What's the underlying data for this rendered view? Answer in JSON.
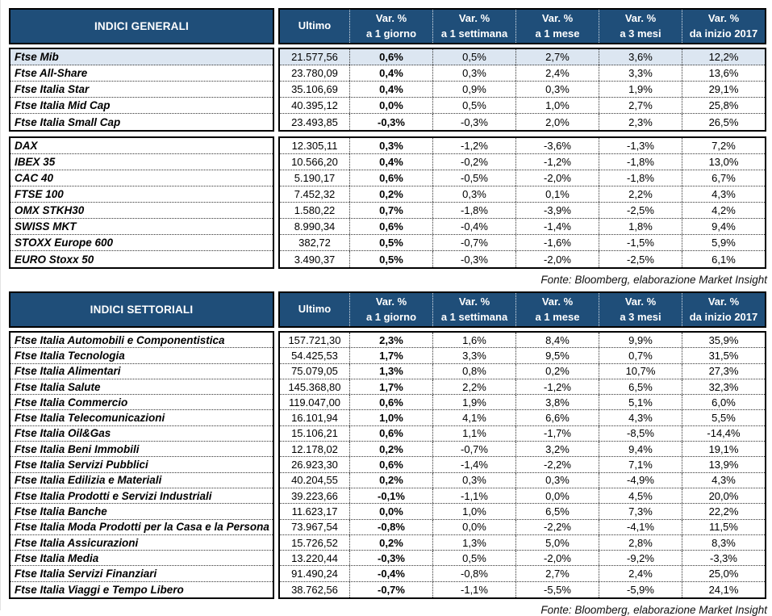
{
  "columns": {
    "ultimo": "Ultimo",
    "var_headers": [
      {
        "line1": "Var. %",
        "line2": "a 1 giorno"
      },
      {
        "line1": "Var. %",
        "line2": "a 1 settimana"
      },
      {
        "line1": "Var. %",
        "line2": "a 1 mese"
      },
      {
        "line1": "Var. %",
        "line2": "a 3 mesi"
      },
      {
        "line1": "Var. %",
        "line2": "da inizio 2017"
      }
    ]
  },
  "colors": {
    "header_bg": "#1F4E79",
    "header_text": "#FFFFFF",
    "highlight_row_bg": "#DCE6F1",
    "border": "#000000"
  },
  "tables": [
    {
      "title": "INDICI GENERALI",
      "source": "Fonte: Bloomberg, elaborazione Market Insight",
      "blocks": [
        {
          "rows": [
            {
              "name": "Ftse Mib",
              "ultimo": "21.577,56",
              "vars": [
                "0,6%",
                "0,5%",
                "2,7%",
                "3,6%",
                "12,2%"
              ],
              "highlight": true
            },
            {
              "name": "Ftse All-Share",
              "ultimo": "23.780,09",
              "vars": [
                "0,4%",
                "0,3%",
                "2,4%",
                "3,3%",
                "13,6%"
              ],
              "highlight": false
            },
            {
              "name": "Ftse Italia Star",
              "ultimo": "35.106,69",
              "vars": [
                "0,4%",
                "0,9%",
                "0,3%",
                "1,9%",
                "29,1%"
              ],
              "highlight": false
            },
            {
              "name": "Ftse Italia Mid Cap",
              "ultimo": "40.395,12",
              "vars": [
                "0,0%",
                "0,5%",
                "1,0%",
                "2,7%",
                "25,8%"
              ],
              "highlight": false
            },
            {
              "name": "Ftse Italia Small Cap",
              "ultimo": "23.493,85",
              "vars": [
                "-0,3%",
                "-0,3%",
                "2,0%",
                "2,3%",
                "26,5%"
              ],
              "highlight": false
            }
          ]
        },
        {
          "rows": [
            {
              "name": "DAX",
              "ultimo": "12.305,11",
              "vars": [
                "0,3%",
                "-1,2%",
                "-3,6%",
                "-1,3%",
                "7,2%"
              ],
              "highlight": false
            },
            {
              "name": "IBEX 35",
              "ultimo": "10.566,20",
              "vars": [
                "0,4%",
                "-0,2%",
                "-1,2%",
                "-1,8%",
                "13,0%"
              ],
              "highlight": false
            },
            {
              "name": "CAC 40",
              "ultimo": "5.190,17",
              "vars": [
                "0,6%",
                "-0,5%",
                "-2,0%",
                "-1,8%",
                "6,7%"
              ],
              "highlight": false
            },
            {
              "name": "FTSE 100",
              "ultimo": "7.452,32",
              "vars": [
                "0,2%",
                "0,3%",
                "0,1%",
                "2,2%",
                "4,3%"
              ],
              "highlight": false
            },
            {
              "name": "OMX STKH30",
              "ultimo": "1.580,22",
              "vars": [
                "0,7%",
                "-1,8%",
                "-3,9%",
                "-2,5%",
                "4,2%"
              ],
              "highlight": false
            },
            {
              "name": "SWISS MKT",
              "ultimo": "8.990,34",
              "vars": [
                "0,6%",
                "-0,4%",
                "-1,4%",
                "1,8%",
                "9,4%"
              ],
              "highlight": false
            },
            {
              "name": "STOXX Europe 600",
              "ultimo": "382,72",
              "vars": [
                "0,5%",
                "-0,7%",
                "-1,6%",
                "-1,5%",
                "5,9%"
              ],
              "highlight": false
            },
            {
              "name": "EURO Stoxx 50",
              "ultimo": "3.490,37",
              "vars": [
                "0,5%",
                "-0,3%",
                "-2,0%",
                "-2,5%",
                "6,1%"
              ],
              "highlight": false
            }
          ]
        }
      ]
    },
    {
      "title": "INDICI SETTORIALI",
      "source": "Fonte: Bloomberg, elaborazione Market Insight",
      "blocks": [
        {
          "rows": [
            {
              "name": "Ftse Italia Automobili e Componentistica",
              "ultimo": "157.721,30",
              "vars": [
                "2,3%",
                "1,6%",
                "8,4%",
                "9,9%",
                "35,9%"
              ],
              "highlight": false
            },
            {
              "name": "Ftse Italia Tecnologia",
              "ultimo": "54.425,53",
              "vars": [
                "1,7%",
                "3,3%",
                "9,5%",
                "0,7%",
                "31,5%"
              ],
              "highlight": false
            },
            {
              "name": "Ftse Italia Alimentari",
              "ultimo": "75.079,05",
              "vars": [
                "1,3%",
                "0,8%",
                "0,2%",
                "10,7%",
                "27,3%"
              ],
              "highlight": false
            },
            {
              "name": "Ftse Italia Salute",
              "ultimo": "145.368,80",
              "vars": [
                "1,7%",
                "2,2%",
                "-1,2%",
                "6,5%",
                "32,3%"
              ],
              "highlight": false
            },
            {
              "name": "Ftse Italia Commercio",
              "ultimo": "119.047,00",
              "vars": [
                "0,6%",
                "1,9%",
                "3,8%",
                "5,1%",
                "6,0%"
              ],
              "highlight": false
            },
            {
              "name": "Ftse Italia Telecomunicazioni",
              "ultimo": "16.101,94",
              "vars": [
                "1,0%",
                "4,1%",
                "6,6%",
                "4,3%",
                "5,5%"
              ],
              "highlight": false
            },
            {
              "name": "Ftse Italia Oil&Gas",
              "ultimo": "15.106,21",
              "vars": [
                "0,6%",
                "1,1%",
                "-1,7%",
                "-8,5%",
                "-14,4%"
              ],
              "highlight": false
            },
            {
              "name": "Ftse Italia Beni Immobili",
              "ultimo": "12.178,02",
              "vars": [
                "0,2%",
                "-0,7%",
                "3,2%",
                "9,4%",
                "19,1%"
              ],
              "highlight": false
            },
            {
              "name": "Ftse Italia Servizi Pubblici",
              "ultimo": "26.923,30",
              "vars": [
                "0,6%",
                "-1,4%",
                "-2,2%",
                "7,1%",
                "13,9%"
              ],
              "highlight": false
            },
            {
              "name": "Ftse Italia Edilizia e Materiali",
              "ultimo": "40.204,55",
              "vars": [
                "0,2%",
                "0,3%",
                "0,3%",
                "-4,9%",
                "4,3%"
              ],
              "highlight": false
            },
            {
              "name": "Ftse Italia Prodotti e Servizi Industriali",
              "ultimo": "39.223,66",
              "vars": [
                "-0,1%",
                "-1,1%",
                "0,0%",
                "4,5%",
                "20,0%"
              ],
              "highlight": false
            },
            {
              "name": "Ftse Italia Banche",
              "ultimo": "11.623,17",
              "vars": [
                "0,0%",
                "1,0%",
                "6,5%",
                "7,3%",
                "22,2%"
              ],
              "highlight": false
            },
            {
              "name": "Ftse Italia Moda Prodotti per la Casa e la Persona",
              "ultimo": "73.967,54",
              "vars": [
                "-0,8%",
                "0,0%",
                "-2,2%",
                "-4,1%",
                "11,5%"
              ],
              "highlight": false
            },
            {
              "name": "Ftse Italia Assicurazioni",
              "ultimo": "15.726,52",
              "vars": [
                "0,2%",
                "1,3%",
                "5,0%",
                "2,8%",
                "8,3%"
              ],
              "highlight": false
            },
            {
              "name": "Ftse Italia Media",
              "ultimo": "13.220,44",
              "vars": [
                "-0,3%",
                "0,5%",
                "-2,0%",
                "-9,2%",
                "-3,3%"
              ],
              "highlight": false
            },
            {
              "name": "Ftse Italia Servizi Finanziari",
              "ultimo": "91.490,24",
              "vars": [
                "-0,4%",
                "-0,8%",
                "2,7%",
                "2,4%",
                "25,0%"
              ],
              "highlight": false
            },
            {
              "name": "Ftse Italia Viaggi e Tempo Libero",
              "ultimo": "38.762,56",
              "vars": [
                "-0,7%",
                "-1,1%",
                "-5,5%",
                "-5,9%",
                "24,1%"
              ],
              "highlight": false
            }
          ]
        }
      ]
    }
  ]
}
